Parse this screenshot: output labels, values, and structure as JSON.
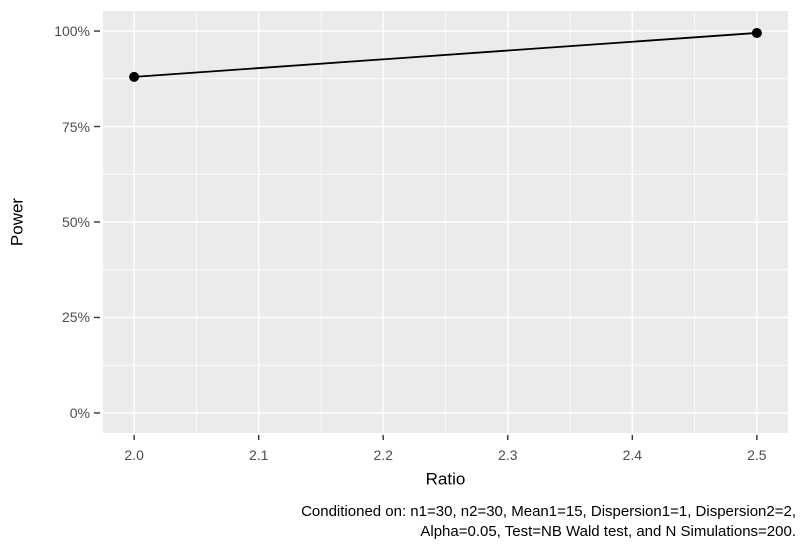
{
  "chart_data": {
    "type": "line",
    "title": "",
    "xlabel": "Ratio",
    "ylabel": "Power",
    "series": [
      {
        "name": "Power",
        "x": [
          2.0,
          2.5
        ],
        "y": [
          0.88,
          0.995
        ]
      }
    ],
    "x_tick_labels": [
      "2.0",
      "2.1",
      "2.2",
      "2.3",
      "2.4",
      "2.5"
    ],
    "x_tick_values": [
      2.0,
      2.1,
      2.2,
      2.3,
      2.4,
      2.5
    ],
    "x_minor_values": [
      2.05,
      2.15,
      2.25,
      2.35,
      2.45
    ],
    "y_tick_labels": [
      "0%",
      "25%",
      "50%",
      "75%",
      "100%"
    ],
    "y_tick_values": [
      0,
      0.25,
      0.5,
      0.75,
      1.0
    ],
    "y_minor_values": [
      0.125,
      0.375,
      0.625,
      0.875
    ],
    "xlim": [
      1.975,
      2.525
    ],
    "ylim": [
      -0.0525,
      1.0525
    ],
    "grid": {
      "major": true,
      "minor": true
    },
    "legend": "none",
    "caption": {
      "lines": [
        "Conditioned on: n1=30, n2=30, Mean1=15, Dispersion1=1, Dispersion2=2,",
        "Alpha=0.05, Test=NB Wald test, and N Simulations=200."
      ]
    },
    "colors": {
      "background": "#FFFFFF",
      "panel_background": "#EBEBEB",
      "grid": "#FFFFFF",
      "line": "#000000",
      "point": "#000000",
      "axis_text": "#4D4D4D",
      "tick_mark": "#333333",
      "title_text": "#000000",
      "caption_text": "#000000"
    }
  }
}
